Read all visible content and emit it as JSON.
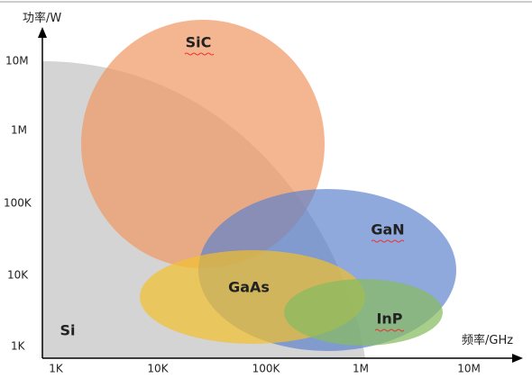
{
  "axes": {
    "y_label": "功率/W",
    "x_label": "频率/GHz",
    "y_ticks": [
      "10M",
      "1M",
      "100K",
      "10K",
      "1K"
    ],
    "x_ticks": [
      "1K",
      "10K",
      "100K",
      "1M",
      "10M"
    ]
  },
  "regions": [
    {
      "label": "Si"
    },
    {
      "label": "SiC"
    },
    {
      "label": "GaN"
    },
    {
      "label": "GaAs"
    },
    {
      "label": "InP"
    }
  ]
}
